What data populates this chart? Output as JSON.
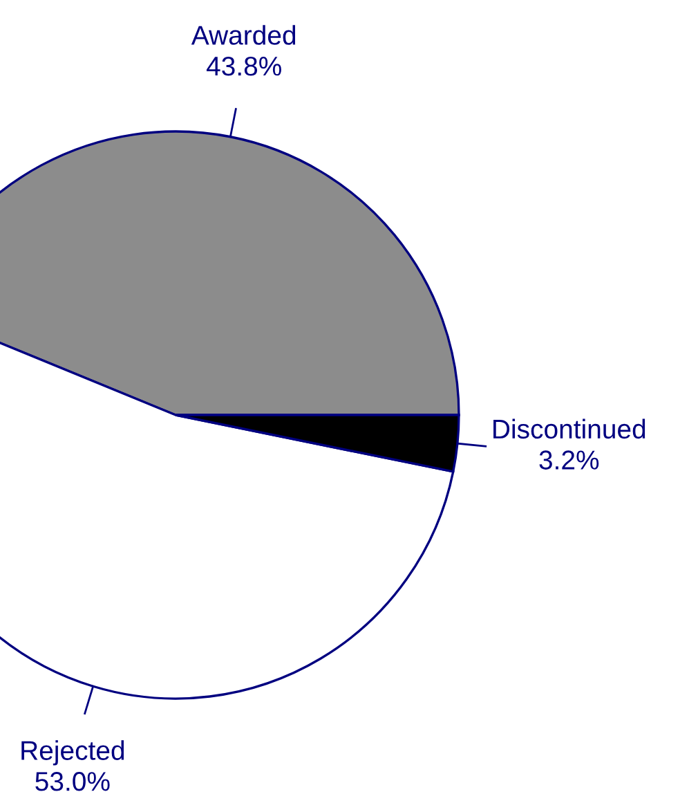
{
  "chart_data": {
    "type": "pie",
    "categories": [
      "Awarded",
      "Rejected",
      "Discontinued"
    ],
    "values": [
      43.8,
      53.0,
      3.2
    ],
    "value_labels": [
      "43.8%",
      "53.0%",
      "3.2%"
    ],
    "colors": [
      "#8c8c8c",
      "#ffffff",
      "#000000"
    ],
    "legend": false
  }
}
